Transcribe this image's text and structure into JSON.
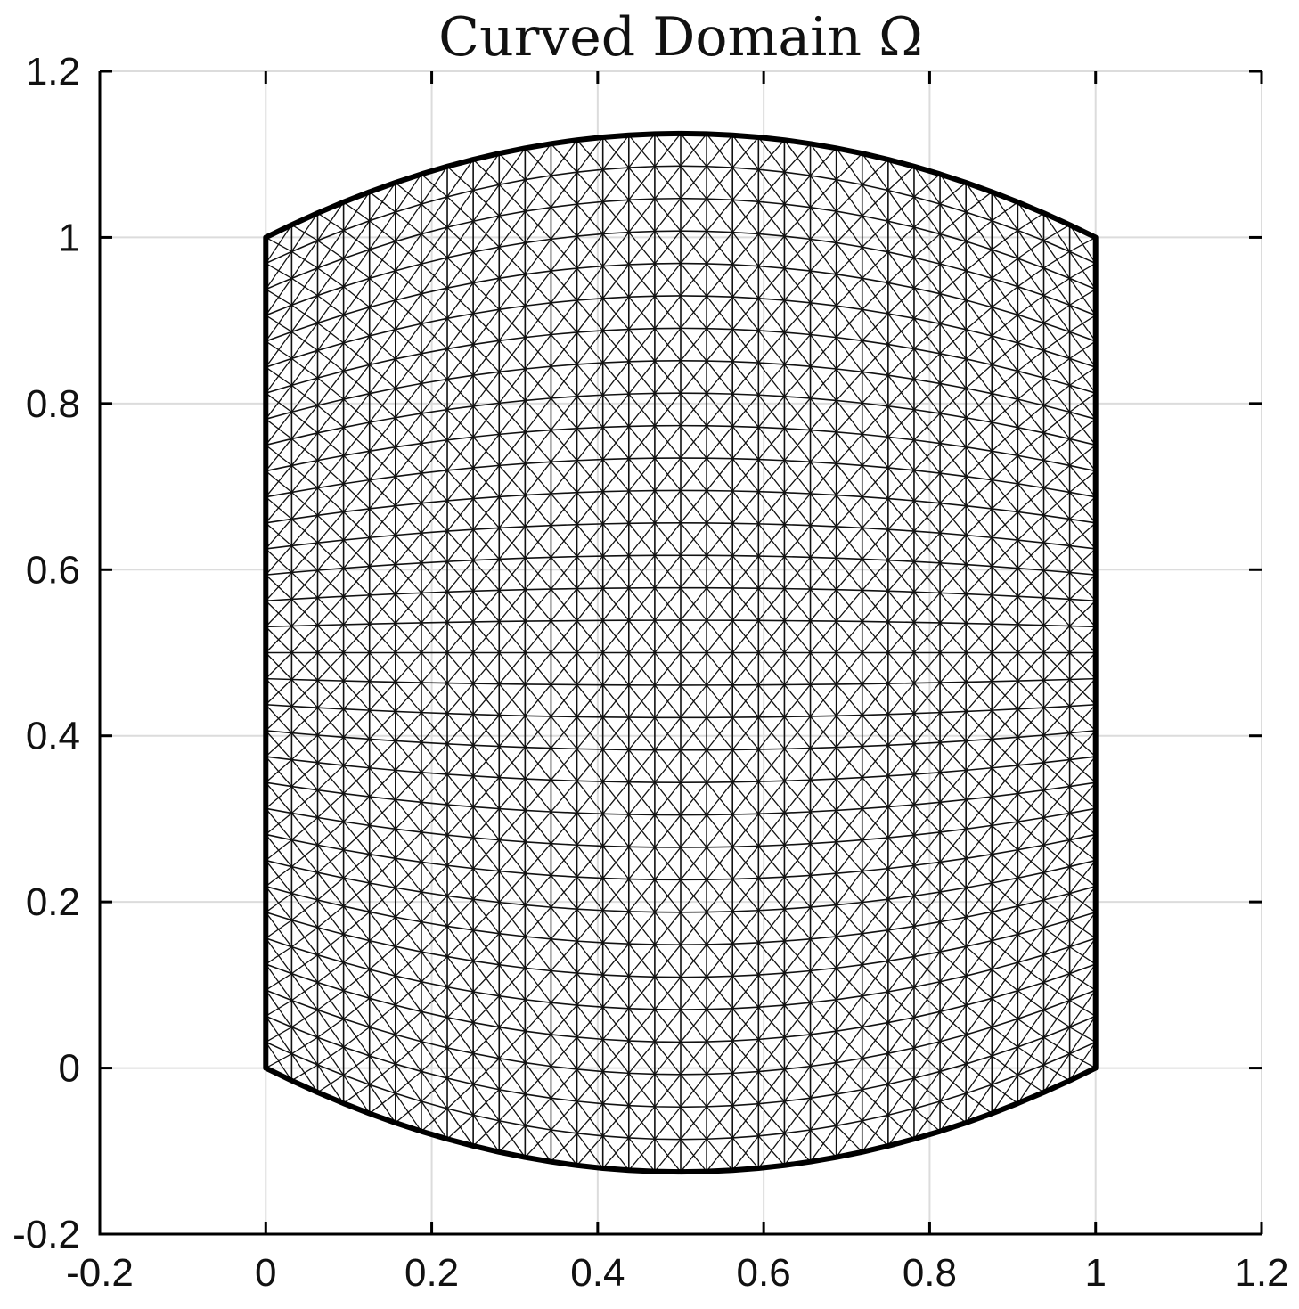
{
  "chart_data": {
    "type": "mesh",
    "title": "Curved Domain Ω",
    "xlabel": "",
    "ylabel": "",
    "xlim": [
      -0.2,
      1.2
    ],
    "ylim": [
      -0.2,
      1.2
    ],
    "xticks": [
      -0.2,
      0,
      0.2,
      0.4,
      0.6,
      0.8,
      1,
      1.2
    ],
    "yticks": [
      -0.2,
      0,
      0.2,
      0.4,
      0.6,
      0.8,
      1,
      1.2
    ],
    "xtick_labels": [
      "-0.2",
      "0",
      "0.2",
      "0.4",
      "0.6",
      "0.8",
      "1",
      "1.2"
    ],
    "ytick_labels": [
      "-0.2",
      "0",
      "0.2",
      "0.4",
      "0.6",
      "0.8",
      "1",
      "1.2"
    ],
    "grid": true,
    "domain": {
      "x_range": [
        0,
        1
      ],
      "bottom_edge": "y = -0.5*x*(1-x)",
      "top_edge": "y = 1 + 0.5*x*(1-x)",
      "corners": [
        [
          0,
          0
        ],
        [
          1,
          0
        ],
        [
          1,
          1
        ],
        [
          0,
          1
        ]
      ],
      "max_bulge": 0.125
    },
    "mesh": {
      "divisions_x": 32,
      "divisions_y": 32,
      "element": "quad-with-both-diagonals",
      "color": "#111111"
    }
  }
}
